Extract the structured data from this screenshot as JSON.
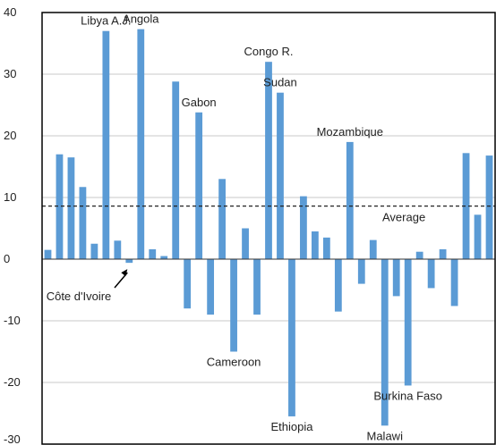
{
  "chart_data": {
    "type": "bar",
    "title": "",
    "xlabel": "",
    "ylabel": "",
    "ylim": [
      -30,
      40
    ],
    "yticks": [
      -30,
      -20,
      -10,
      0,
      10,
      20,
      30,
      40
    ],
    "grid": "horizontal",
    "bar_color": "#5b9bd5",
    "values": [
      1.5,
      17,
      16.5,
      11.7,
      2.5,
      37,
      3,
      -0.6,
      37.3,
      1.6,
      0.5,
      28.8,
      -8,
      23.8,
      -9,
      13,
      -15,
      5,
      -9,
      32,
      27,
      -25.5,
      10.2,
      4.5,
      3.5,
      -8.5,
      19,
      -4,
      3.1,
      -27,
      -6,
      -20.5,
      1.2,
      -4.7,
      1.6,
      -7.6,
      17.2,
      7.2,
      16.8
    ],
    "average": 8.6,
    "average_label": "Average",
    "annotations": [
      {
        "text": "Libya A.J.",
        "bar": 5
      },
      {
        "text": "Angola",
        "bar": 8
      },
      {
        "text": "Côte d'Ivoire",
        "bar": 7
      },
      {
        "text": "Gabon",
        "bar": 13
      },
      {
        "text": "Cameroon",
        "bar": 16
      },
      {
        "text": "Congo R.",
        "bar": 19
      },
      {
        "text": "Sudan",
        "bar": 20
      },
      {
        "text": "Ethiopia",
        "bar": 21
      },
      {
        "text": "Mozambique",
        "bar": 26
      },
      {
        "text": "Malawi",
        "bar": 29
      },
      {
        "text": "Burkina Faso",
        "bar": 31
      }
    ]
  }
}
